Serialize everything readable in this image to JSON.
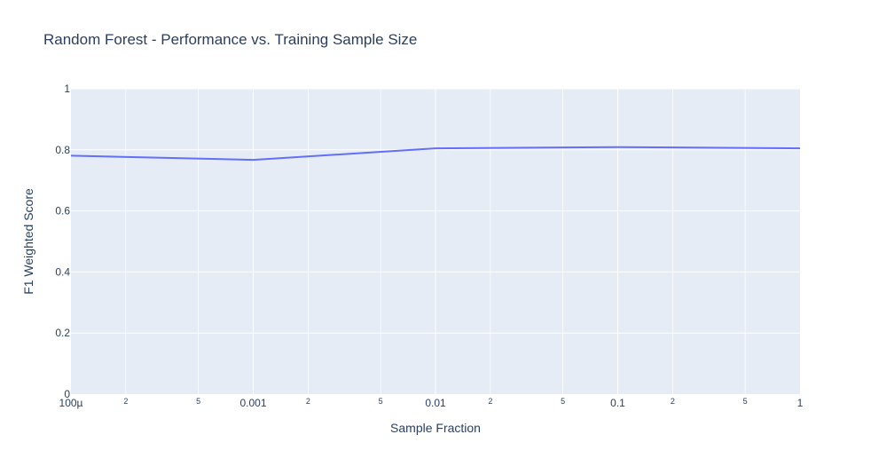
{
  "chart_data": {
    "type": "line",
    "title": "Random Forest - Performance vs. Training Sample Size",
    "xlabel": "Sample Fraction",
    "ylabel": "F1 Weighted Score",
    "x_scale": "log",
    "xlim": [
      0.0001,
      1
    ],
    "ylim": [
      0,
      1
    ],
    "grid": true,
    "x_major_ticks": [
      {
        "value": 0.0001,
        "label": "100µ"
      },
      {
        "value": 0.001,
        "label": "0.001"
      },
      {
        "value": 0.01,
        "label": "0.01"
      },
      {
        "value": 0.1,
        "label": "0.1"
      },
      {
        "value": 1,
        "label": "1"
      }
    ],
    "x_minor_ticks": [
      {
        "value": 0.0002,
        "label": "2"
      },
      {
        "value": 0.0005,
        "label": "5"
      },
      {
        "value": 0.002,
        "label": "2"
      },
      {
        "value": 0.005,
        "label": "5"
      },
      {
        "value": 0.02,
        "label": "2"
      },
      {
        "value": 0.05,
        "label": "5"
      },
      {
        "value": 0.2,
        "label": "2"
      },
      {
        "value": 0.5,
        "label": "5"
      }
    ],
    "y_ticks": [
      {
        "value": 0,
        "label": "0"
      },
      {
        "value": 0.2,
        "label": "0.2"
      },
      {
        "value": 0.4,
        "label": "0.4"
      },
      {
        "value": 0.6,
        "label": "0.6"
      },
      {
        "value": 0.8,
        "label": "0.8"
      },
      {
        "value": 1,
        "label": "1"
      }
    ],
    "series": [
      {
        "color": "#636efa",
        "x": [
          0.0001,
          0.001,
          0.01,
          0.1,
          1
        ],
        "y": [
          0.781,
          0.767,
          0.805,
          0.809,
          0.805
        ]
      }
    ],
    "colors": {
      "plot_bg": "#e5ecf6",
      "grid": "#ffffff",
      "text": "#2a3f5f"
    }
  }
}
